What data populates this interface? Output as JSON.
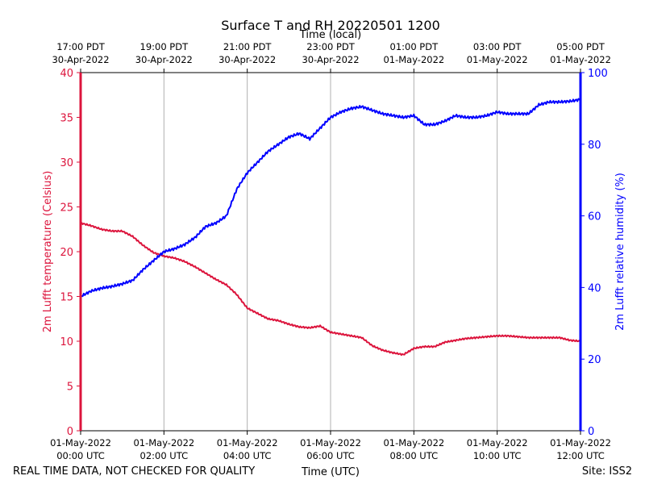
{
  "chart_data": {
    "type": "line",
    "title": "Surface T and RH 20220501 1200",
    "top_axis_label": "Time (local)",
    "xlabel": "Time (UTC)",
    "ylabel_left": "2m Lufft temperature (Celsius)",
    "ylabel_right": "2m Lufft relative humidity (%)",
    "footer_left": "REAL TIME DATA, NOT CHECKED FOR QUALITY",
    "footer_right": "Site: ISS2",
    "x_unit": "hours since 01-May-2022 00:00 UTC",
    "xlim": [
      0,
      12
    ],
    "ylim_left": [
      0,
      40
    ],
    "ylim_right": [
      0,
      100
    ],
    "grid": "vertical",
    "left_ticks": [
      0,
      5,
      10,
      15,
      20,
      25,
      30,
      35,
      40
    ],
    "right_ticks": [
      0,
      20,
      40,
      60,
      80,
      100
    ],
    "bottom_ticks": [
      {
        "x": 0,
        "line1": "01-May-2022",
        "line2": "00:00 UTC"
      },
      {
        "x": 2,
        "line1": "01-May-2022",
        "line2": "02:00 UTC"
      },
      {
        "x": 4,
        "line1": "01-May-2022",
        "line2": "04:00 UTC"
      },
      {
        "x": 6,
        "line1": "01-May-2022",
        "line2": "06:00 UTC"
      },
      {
        "x": 8,
        "line1": "01-May-2022",
        "line2": "08:00 UTC"
      },
      {
        "x": 10,
        "line1": "01-May-2022",
        "line2": "10:00 UTC"
      },
      {
        "x": 12,
        "line1": "01-May-2022",
        "line2": "12:00 UTC"
      }
    ],
    "top_ticks": [
      {
        "x": 0,
        "line1": "17:00 PDT",
        "line2": "30-Apr-2022"
      },
      {
        "x": 2,
        "line1": "19:00 PDT",
        "line2": "30-Apr-2022"
      },
      {
        "x": 4,
        "line1": "21:00 PDT",
        "line2": "30-Apr-2022"
      },
      {
        "x": 6,
        "line1": "23:00 PDT",
        "line2": "30-Apr-2022"
      },
      {
        "x": 8,
        "line1": "01:00 PDT",
        "line2": "01-May-2022"
      },
      {
        "x": 10,
        "line1": "03:00 PDT",
        "line2": "01-May-2022"
      },
      {
        "x": 12,
        "line1": "05:00 PDT",
        "line2": "01-May-2022"
      }
    ],
    "series": [
      {
        "name": "2m Lufft temperature",
        "axis": "left",
        "color": "#dc143c",
        "x": [
          0.0,
          0.25,
          0.5,
          0.75,
          1.0,
          1.25,
          1.5,
          1.75,
          2.0,
          2.25,
          2.5,
          2.75,
          3.0,
          3.25,
          3.5,
          3.75,
          4.0,
          4.25,
          4.5,
          4.75,
          5.0,
          5.25,
          5.5,
          5.75,
          6.0,
          6.25,
          6.5,
          6.75,
          7.0,
          7.25,
          7.5,
          7.75,
          8.0,
          8.25,
          8.5,
          8.75,
          9.0,
          9.25,
          9.5,
          9.75,
          10.0,
          10.25,
          10.5,
          10.75,
          11.0,
          11.25,
          11.5,
          11.75,
          12.0
        ],
        "values": [
          23.2,
          22.9,
          22.5,
          22.3,
          22.3,
          21.7,
          20.7,
          19.9,
          19.5,
          19.3,
          18.9,
          18.3,
          17.6,
          16.9,
          16.3,
          15.2,
          13.7,
          13.1,
          12.5,
          12.3,
          11.9,
          11.6,
          11.5,
          11.7,
          11.0,
          10.8,
          10.6,
          10.4,
          9.5,
          9.0,
          8.7,
          8.5,
          9.2,
          9.4,
          9.4,
          9.9,
          10.1,
          10.3,
          10.4,
          10.5,
          10.6,
          10.6,
          10.5,
          10.4,
          10.4,
          10.4,
          10.4,
          10.1,
          10.0
        ]
      },
      {
        "name": "2m Lufft relative humidity",
        "axis": "right",
        "color": "#0000ff",
        "x": [
          0.0,
          0.25,
          0.5,
          0.75,
          1.0,
          1.25,
          1.5,
          1.75,
          2.0,
          2.25,
          2.5,
          2.75,
          3.0,
          3.25,
          3.5,
          3.75,
          4.0,
          4.25,
          4.5,
          4.75,
          5.0,
          5.25,
          5.5,
          5.75,
          6.0,
          6.25,
          6.5,
          6.75,
          7.0,
          7.25,
          7.5,
          7.75,
          8.0,
          8.25,
          8.5,
          8.75,
          9.0,
          9.25,
          9.5,
          9.75,
          10.0,
          10.25,
          10.5,
          10.75,
          11.0,
          11.25,
          11.5,
          11.75,
          12.0
        ],
        "values": [
          37.5,
          39.0,
          39.8,
          40.3,
          41.0,
          42.0,
          45.0,
          47.5,
          50.0,
          50.8,
          52.0,
          54.0,
          57.0,
          58.0,
          60.0,
          67.5,
          72.0,
          75.0,
          78.0,
          80.0,
          82.0,
          83.0,
          81.5,
          84.5,
          87.5,
          89.0,
          90.0,
          90.5,
          89.5,
          88.5,
          88.0,
          87.5,
          88.0,
          85.5,
          85.5,
          86.5,
          88.0,
          87.5,
          87.5,
          88.0,
          89.0,
          88.5,
          88.5,
          88.5,
          91.0,
          91.8,
          91.8,
          92.0,
          92.5
        ]
      }
    ]
  }
}
